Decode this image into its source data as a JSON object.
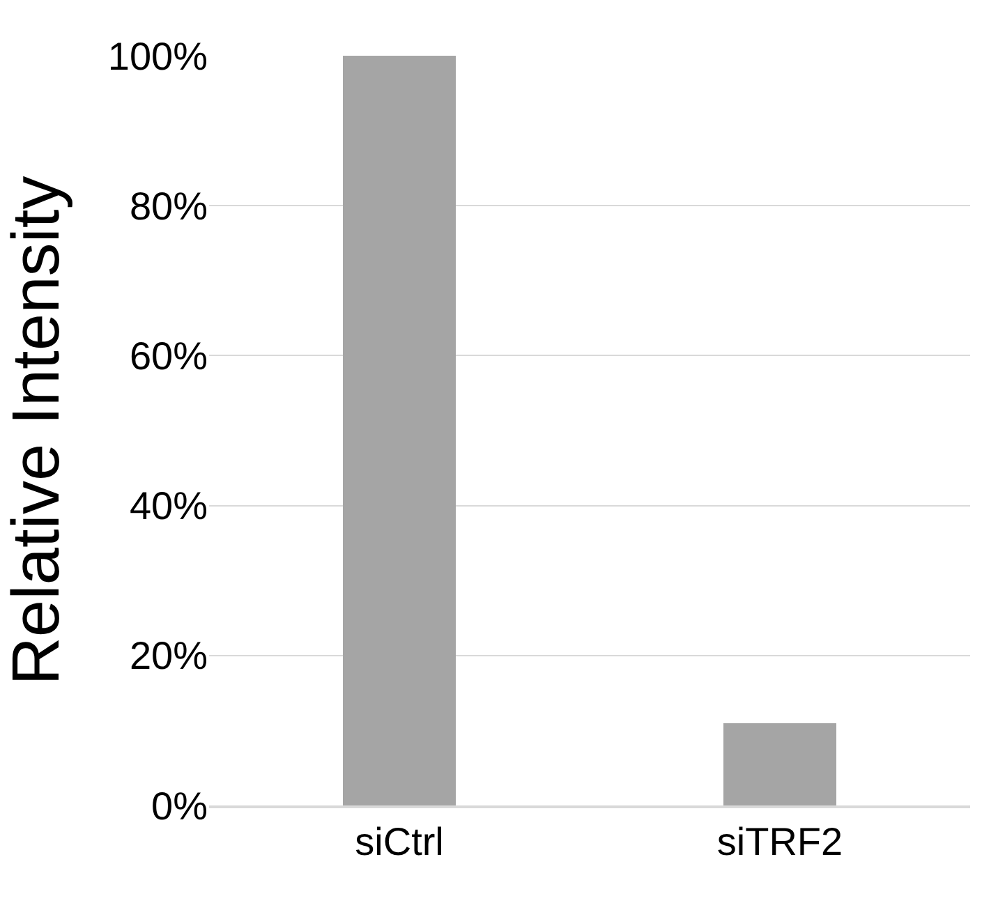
{
  "chart_data": {
    "type": "bar",
    "ylabel": "Relative Intensity",
    "categories": [
      "siCtrl",
      "siTRF2"
    ],
    "values": [
      100,
      11
    ],
    "color": "#a5a5a5",
    "ylim": [
      0,
      100
    ],
    "yticks": [
      {
        "value": 0,
        "label": "0%"
      },
      {
        "value": 20,
        "label": "20%"
      },
      {
        "value": 40,
        "label": "40%"
      },
      {
        "value": 60,
        "label": "60%"
      },
      {
        "value": 80,
        "label": "80%"
      },
      {
        "value": 100,
        "label": "100%"
      }
    ],
    "grid": "y",
    "legend": false
  }
}
